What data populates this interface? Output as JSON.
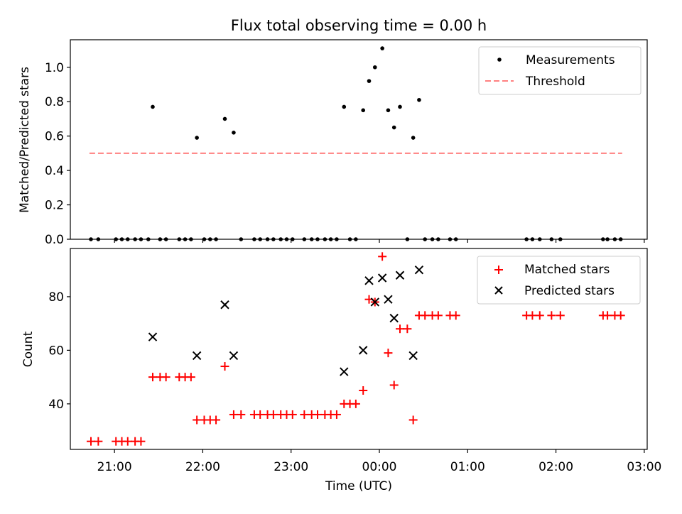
{
  "chart_data": [
    {
      "type": "scatter",
      "title": "Flux total observing time = 0.00 h",
      "xlabel": "",
      "ylabel": "Matched/Predicted stars",
      "xlim": [
        "20:30",
        "03:02"
      ],
      "ylim": [
        0,
        1.16
      ],
      "y_ticks": [
        0.0,
        0.2,
        0.4,
        0.6,
        0.8,
        1.0
      ],
      "y_tick_labels": [
        "0.0",
        "0.2",
        "0.4",
        "0.6",
        "0.8",
        "1.0"
      ],
      "legend_position": "top-right",
      "series": [
        {
          "name": "Measurements",
          "marker": "dot",
          "color": "#000000",
          "points": [
            [
              "20:44",
              0
            ],
            [
              "20:49",
              0
            ],
            [
              "21:01",
              0
            ],
            [
              "21:05",
              0
            ],
            [
              "21:09",
              0
            ],
            [
              "21:14",
              0
            ],
            [
              "21:18",
              0
            ],
            [
              "21:23",
              0
            ],
            [
              "21:26",
              0.77
            ],
            [
              "21:31",
              0
            ],
            [
              "21:35",
              0
            ],
            [
              "21:44",
              0
            ],
            [
              "21:48",
              0
            ],
            [
              "21:52",
              0
            ],
            [
              "21:56",
              0.59
            ],
            [
              "22:01",
              0
            ],
            [
              "22:05",
              0
            ],
            [
              "22:09",
              0
            ],
            [
              "22:15",
              0.7
            ],
            [
              "22:21",
              0.62
            ],
            [
              "22:26",
              0
            ],
            [
              "22:35",
              0
            ],
            [
              "22:39",
              0
            ],
            [
              "22:44",
              0
            ],
            [
              "22:48",
              0
            ],
            [
              "22:53",
              0
            ],
            [
              "22:57",
              0
            ],
            [
              "23:01",
              0
            ],
            [
              "23:09",
              0
            ],
            [
              "23:14",
              0
            ],
            [
              "23:18",
              0
            ],
            [
              "23:23",
              0
            ],
            [
              "23:27",
              0
            ],
            [
              "23:31",
              0
            ],
            [
              "23:36",
              0.77
            ],
            [
              "23:40",
              0
            ],
            [
              "23:44",
              0
            ],
            [
              "23:49",
              0.75
            ],
            [
              "23:53",
              0.92
            ],
            [
              "23:57",
              1.0
            ],
            [
              "00:02",
              1.11
            ],
            [
              "00:06",
              0.75
            ],
            [
              "00:10",
              0.65
            ],
            [
              "00:14",
              0.77
            ],
            [
              "00:19",
              0
            ],
            [
              "00:23",
              0.59
            ],
            [
              "00:27",
              0.81
            ],
            [
              "00:31",
              0
            ],
            [
              "00:36",
              0
            ],
            [
              "00:40",
              0
            ],
            [
              "00:48",
              0
            ],
            [
              "00:52",
              0
            ],
            [
              "01:40",
              0
            ],
            [
              "01:44",
              0
            ],
            [
              "01:49",
              0
            ],
            [
              "01:57",
              0
            ],
            [
              "02:03",
              0
            ],
            [
              "02:32",
              0
            ],
            [
              "02:35",
              0
            ],
            [
              "02:40",
              0
            ],
            [
              "02:44",
              0
            ]
          ]
        },
        {
          "name": "Threshold",
          "type": "line",
          "style": "dashed",
          "color": "#ff8080",
          "points": [
            [
              "20:43",
              0.5
            ],
            [
              "02:45",
              0.5
            ]
          ]
        }
      ]
    },
    {
      "type": "scatter",
      "title": "",
      "xlabel": "Time (UTC)",
      "ylabel": "Count",
      "xlim": [
        "20:30",
        "03:02"
      ],
      "ylim": [
        23,
        98
      ],
      "y_ticks": [
        40,
        60,
        80
      ],
      "y_tick_labels": [
        "40",
        "60",
        "80"
      ],
      "x_ticks": [
        "21:00",
        "22:00",
        "23:00",
        "00:00",
        "01:00",
        "02:00",
        "03:00"
      ],
      "x_tick_labels": [
        "21:00",
        "22:00",
        "23:00",
        "00:00",
        "01:00",
        "02:00",
        "03:00"
      ],
      "legend_position": "top-right",
      "series": [
        {
          "name": "Matched stars",
          "marker": "plus",
          "color": "#ff0000",
          "points": [
            [
              "20:44",
              26
            ],
            [
              "20:49",
              26
            ],
            [
              "21:01",
              26
            ],
            [
              "21:05",
              26
            ],
            [
              "21:09",
              26
            ],
            [
              "21:14",
              26
            ],
            [
              "21:18",
              26
            ],
            [
              "21:26",
              50
            ],
            [
              "21:31",
              50
            ],
            [
              "21:35",
              50
            ],
            [
              "21:44",
              50
            ],
            [
              "21:48",
              50
            ],
            [
              "21:52",
              50
            ],
            [
              "21:56",
              34
            ],
            [
              "22:01",
              34
            ],
            [
              "22:05",
              34
            ],
            [
              "22:09",
              34
            ],
            [
              "22:15",
              54
            ],
            [
              "22:21",
              36
            ],
            [
              "22:26",
              36
            ],
            [
              "22:35",
              36
            ],
            [
              "22:39",
              36
            ],
            [
              "22:44",
              36
            ],
            [
              "22:48",
              36
            ],
            [
              "22:53",
              36
            ],
            [
              "22:57",
              36
            ],
            [
              "23:01",
              36
            ],
            [
              "23:09",
              36
            ],
            [
              "23:14",
              36
            ],
            [
              "23:18",
              36
            ],
            [
              "23:23",
              36
            ],
            [
              "23:27",
              36
            ],
            [
              "23:31",
              36
            ],
            [
              "23:36",
              40
            ],
            [
              "23:40",
              40
            ],
            [
              "23:44",
              40
            ],
            [
              "23:49",
              45
            ],
            [
              "23:53",
              79
            ],
            [
              "23:57",
              78
            ],
            [
              "00:02",
              95
            ],
            [
              "00:06",
              59
            ],
            [
              "00:10",
              47
            ],
            [
              "00:14",
              68
            ],
            [
              "00:19",
              68
            ],
            [
              "00:23",
              34
            ],
            [
              "00:27",
              73
            ],
            [
              "00:31",
              73
            ],
            [
              "00:36",
              73
            ],
            [
              "00:40",
              73
            ],
            [
              "00:48",
              73
            ],
            [
              "00:52",
              73
            ],
            [
              "01:40",
              73
            ],
            [
              "01:44",
              73
            ],
            [
              "01:49",
              73
            ],
            [
              "01:57",
              73
            ],
            [
              "02:03",
              73
            ],
            [
              "02:32",
              73
            ],
            [
              "02:35",
              73
            ],
            [
              "02:40",
              73
            ],
            [
              "02:44",
              73
            ]
          ]
        },
        {
          "name": "Predicted stars",
          "marker": "x",
          "color": "#000000",
          "points": [
            [
              "21:26",
              65
            ],
            [
              "21:56",
              58
            ],
            [
              "22:15",
              77
            ],
            [
              "22:21",
              58
            ],
            [
              "23:36",
              52
            ],
            [
              "23:49",
              60
            ],
            [
              "23:53",
              86
            ],
            [
              "23:57",
              78
            ],
            [
              "00:02",
              87
            ],
            [
              "00:06",
              79
            ],
            [
              "00:10",
              72
            ],
            [
              "00:14",
              88
            ],
            [
              "00:23",
              58
            ],
            [
              "00:27",
              90
            ]
          ]
        }
      ]
    }
  ]
}
